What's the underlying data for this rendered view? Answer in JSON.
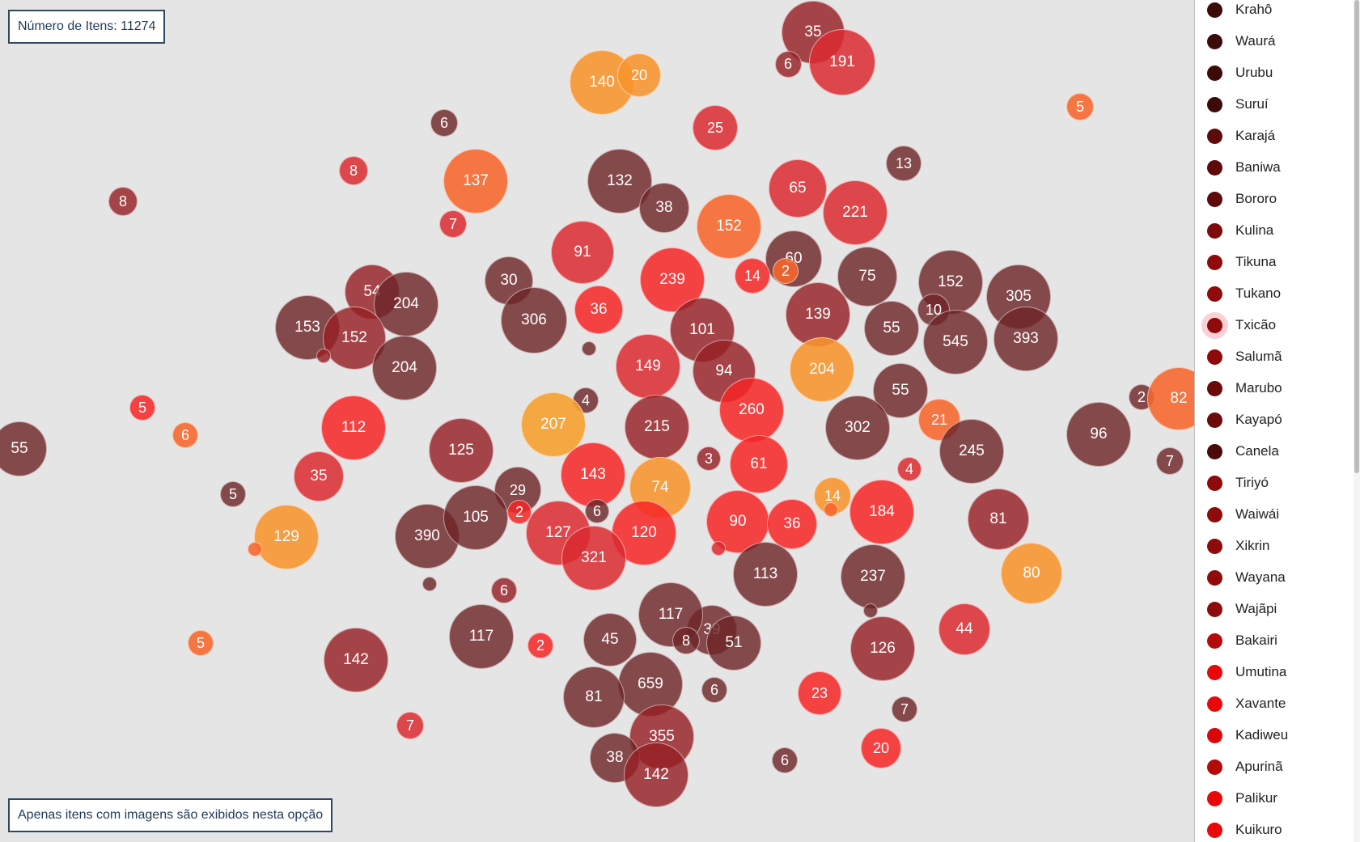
{
  "info": {
    "item_count": "Número de Itens: 11274",
    "note": "Apenas itens com imagens são exibidos nesta opção"
  },
  "colors": {
    "dark": "#6e2b2d",
    "darkred": "#96262b",
    "red": "#dc3238",
    "brightred": "#f5292c",
    "orange": "#f76a30",
    "lightorange": "#f8962e",
    "amber": "#f59f2f"
  },
  "bubbles": [
    {
      "label": "35",
      "size": 78,
      "color": "darkred"
    },
    {
      "label": "191",
      "size": 82,
      "color": "red"
    },
    {
      "label": "6",
      "size": 33,
      "color": "darkred"
    },
    {
      "label": "140",
      "size": 80,
      "color": "lightorange"
    },
    {
      "label": "20",
      "size": 54,
      "color": "lightorange"
    },
    {
      "label": "6",
      "size": 34,
      "color": "dark"
    },
    {
      "label": "5",
      "size": 34,
      "color": "orange"
    },
    {
      "label": "25",
      "size": 56,
      "color": "red"
    },
    {
      "label": "8",
      "size": 36,
      "color": "red"
    },
    {
      "label": "137",
      "size": 80,
      "color": "orange"
    },
    {
      "label": "8",
      "size": 36,
      "color": "darkred"
    },
    {
      "label": "132",
      "size": 80,
      "color": "dark"
    },
    {
      "label": "38",
      "size": 62,
      "color": "dark"
    },
    {
      "label": "13",
      "size": 44,
      "color": "dark"
    },
    {
      "label": "65",
      "size": 72,
      "color": "red"
    },
    {
      "label": "221",
      "size": 80,
      "color": "red"
    },
    {
      "label": "152",
      "size": 80,
      "color": "orange"
    },
    {
      "label": "7",
      "size": 34,
      "color": "red"
    },
    {
      "label": "91",
      "size": 78,
      "color": "red"
    },
    {
      "label": "239",
      "size": 80,
      "color": "brightred"
    },
    {
      "label": "60",
      "size": 70,
      "color": "dark"
    },
    {
      "label": "14",
      "size": 44,
      "color": "brightred"
    },
    {
      "label": "2",
      "size": 32,
      "color": "orange"
    },
    {
      "label": "30",
      "size": 60,
      "color": "dark"
    },
    {
      "label": "306",
      "size": 82,
      "color": "dark"
    },
    {
      "label": "36",
      "size": 60,
      "color": "brightred"
    },
    {
      "label": "75",
      "size": 74,
      "color": "dark"
    },
    {
      "label": "152",
      "size": 80,
      "color": "dark"
    },
    {
      "label": "305",
      "size": 80,
      "color": "dark"
    },
    {
      "label": "54",
      "size": 68,
      "color": "darkred"
    },
    {
      "label": "204",
      "size": 80,
      "color": "dark"
    },
    {
      "label": "153",
      "size": 80,
      "color": "dark"
    },
    {
      "label": "152",
      "size": 78,
      "color": "darkred"
    },
    {
      "label": "10",
      "size": 40,
      "color": "dark"
    },
    {
      "label": "55",
      "size": 68,
      "color": "dark"
    },
    {
      "label": "545",
      "size": 80,
      "color": "dark"
    },
    {
      "label": "393",
      "size": 80,
      "color": "dark"
    },
    {
      "label": "139",
      "size": 80,
      "color": "darkred"
    },
    {
      "label": "101",
      "size": 80,
      "color": "darkred"
    },
    {
      "label": "204",
      "size": 80,
      "color": "dark"
    },
    {
      "label": "149",
      "size": 80,
      "color": "red"
    },
    {
      "label": "94",
      "size": 78,
      "color": "darkred"
    },
    {
      "label": "204",
      "size": 80,
      "color": "lightorange"
    },
    {
      "label": "55",
      "size": 68,
      "color": "dark"
    },
    {
      "label": "2",
      "size": 32,
      "color": "dark"
    },
    {
      "label": "82",
      "size": 78,
      "color": "orange"
    },
    {
      "label": "5",
      "size": 32,
      "color": "brightred"
    },
    {
      "label": "4",
      "size": 32,
      "color": "dark"
    },
    {
      "label": "112",
      "size": 80,
      "color": "brightred"
    },
    {
      "label": "207",
      "size": 80,
      "color": "amber"
    },
    {
      "label": "215",
      "size": 80,
      "color": "darkred"
    },
    {
      "label": "260",
      "size": 80,
      "color": "brightred"
    },
    {
      "label": "302",
      "size": 80,
      "color": "dark"
    },
    {
      "label": "21",
      "size": 52,
      "color": "orange"
    },
    {
      "label": "96",
      "size": 80,
      "color": "dark"
    },
    {
      "label": "5",
      "size": 30,
      "color": "amber"
    },
    {
      "label": "55",
      "size": 68,
      "color": "dark"
    },
    {
      "label": "6",
      "size": 32,
      "color": "orange"
    },
    {
      "label": "125",
      "size": 80,
      "color": "darkred"
    },
    {
      "label": "245",
      "size": 80,
      "color": "dark"
    },
    {
      "label": "7",
      "size": 34,
      "color": "dark"
    },
    {
      "label": "35",
      "size": 62,
      "color": "red"
    },
    {
      "label": "3",
      "size": 30,
      "color": "darkred"
    },
    {
      "label": "61",
      "size": 72,
      "color": "brightred"
    },
    {
      "label": "4",
      "size": 30,
      "color": "red"
    },
    {
      "label": "5",
      "size": 32,
      "color": "dark"
    },
    {
      "label": "143",
      "size": 80,
      "color": "brightred"
    },
    {
      "label": "29",
      "size": 58,
      "color": "dark"
    },
    {
      "label": "74",
      "size": 76,
      "color": "lightorange"
    },
    {
      "label": "14",
      "size": 46,
      "color": "lightorange"
    },
    {
      "label": "184",
      "size": 80,
      "color": "brightred"
    },
    {
      "label": "129",
      "size": 80,
      "color": "lightorange"
    },
    {
      "label": "2",
      "size": 30,
      "color": "brightred"
    },
    {
      "label": "6",
      "size": 30,
      "color": "dark"
    },
    {
      "label": "81",
      "size": 76,
      "color": "darkred"
    },
    {
      "label": "390",
      "size": 80,
      "color": "dark"
    },
    {
      "label": "105",
      "size": 80,
      "color": "dark"
    },
    {
      "label": "127",
      "size": 80,
      "color": "red"
    },
    {
      "label": "120",
      "size": 80,
      "color": "brightred"
    },
    {
      "label": "90",
      "size": 78,
      "color": "brightred"
    },
    {
      "label": "36",
      "size": 62,
      "color": "brightred"
    },
    {
      "label": "321",
      "size": 80,
      "color": "red"
    },
    {
      "label": "113",
      "size": 80,
      "color": "dark"
    },
    {
      "label": "237",
      "size": 80,
      "color": "dark"
    },
    {
      "label": "80",
      "size": 76,
      "color": "lightorange"
    },
    {
      "label": "44",
      "size": 64,
      "color": "rose"
    },
    {
      "label": "6",
      "size": 32,
      "color": "darkred"
    },
    {
      "label": "117",
      "size": 80,
      "color": "dark"
    },
    {
      "label": "39",
      "size": 62,
      "color": "dark"
    },
    {
      "label": "44",
      "size": 64,
      "color": "red"
    },
    {
      "label": "117",
      "size": 80,
      "color": "dark"
    },
    {
      "label": "45",
      "size": 66,
      "color": "dark"
    },
    {
      "label": "8",
      "size": 34,
      "color": "dark"
    },
    {
      "label": "51",
      "size": 68,
      "color": "dark"
    },
    {
      "label": "2",
      "size": 32,
      "color": "brightred"
    },
    {
      "label": "126",
      "size": 80,
      "color": "darkred"
    },
    {
      "label": "5",
      "size": 32,
      "color": "orange"
    },
    {
      "label": "142",
      "size": 80,
      "color": "darkred"
    },
    {
      "label": "659",
      "size": 80,
      "color": "dark"
    },
    {
      "label": "6",
      "size": 32,
      "color": "dark"
    },
    {
      "label": "23",
      "size": 54,
      "color": "brightred"
    },
    {
      "label": "81",
      "size": 76,
      "color": "dark"
    },
    {
      "label": "7",
      "size": 32,
      "color": "dark"
    },
    {
      "label": "7",
      "size": 34,
      "color": "red"
    },
    {
      "label": "355",
      "size": 80,
      "color": "darkred"
    },
    {
      "label": "20",
      "size": 50,
      "color": "brightred"
    },
    {
      "label": "38",
      "size": 62,
      "color": "dark"
    },
    {
      "label": "142",
      "size": 80,
      "color": "darkred"
    },
    {
      "label": "6",
      "size": 32,
      "color": "dark"
    },
    {
      "label": "55",
      "size": 68,
      "color": "dark"
    }
  ],
  "legend": [
    {
      "label": "Krahô",
      "color": "#3d0a0a"
    },
    {
      "label": "Waurá",
      "color": "#3d0a0a"
    },
    {
      "label": "Urubu",
      "color": "#3d0a0a"
    },
    {
      "label": "Suruí",
      "color": "#3d0a0a"
    },
    {
      "label": "Karajá",
      "color": "#5e0a0a"
    },
    {
      "label": "Baniwa",
      "color": "#5e0a0a"
    },
    {
      "label": "Bororo",
      "color": "#5e0a0a"
    },
    {
      "label": "Kulina",
      "color": "#7e0a0a"
    },
    {
      "label": "Tikuna",
      "color": "#8f0a0a"
    },
    {
      "label": "Tukano",
      "color": "#8f0a0a"
    },
    {
      "label": "Txicão",
      "color": "#8f0a0a",
      "selected": true
    },
    {
      "label": "Salumã",
      "color": "#8f0a0a"
    },
    {
      "label": "Marubo",
      "color": "#6a0a0a"
    },
    {
      "label": "Kayapó",
      "color": "#6a0a0a"
    },
    {
      "label": "Canela",
      "color": "#4a0a0a"
    },
    {
      "label": "Tiriyó",
      "color": "#8f0a0a"
    },
    {
      "label": "Waiwái",
      "color": "#8f0a0a"
    },
    {
      "label": "Xikrin",
      "color": "#8f0a0a"
    },
    {
      "label": "Wayana",
      "color": "#8f0a0a"
    },
    {
      "label": "Wajãpi",
      "color": "#8f0a0a"
    },
    {
      "label": "Bakairi",
      "color": "#b50a0a"
    },
    {
      "label": "Umutina",
      "color": "#e8080a"
    },
    {
      "label": "Xavante",
      "color": "#e8080a"
    },
    {
      "label": "Kadiweu",
      "color": "#d8080a"
    },
    {
      "label": "Apurinã",
      "color": "#b50a0a"
    },
    {
      "label": "Palikur",
      "color": "#e8080a"
    },
    {
      "label": "Kuikuro",
      "color": "#e8080a"
    }
  ]
}
